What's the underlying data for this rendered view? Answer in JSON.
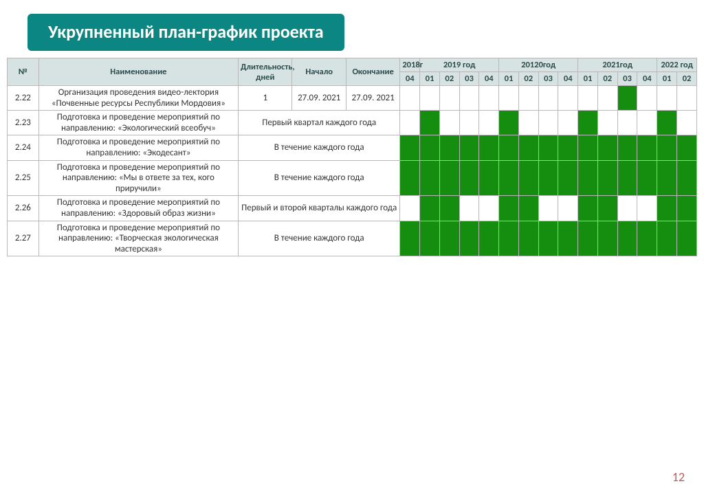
{
  "title": "Укрупненный план-график проекта",
  "page_number": "12",
  "colors": {
    "title_bg": "#0c8682",
    "title_text": "#ffffff",
    "header_bg": "#d7e3e3",
    "border": "#b8b8b8",
    "fill": "#158e0f",
    "page_num": "#c05a5a"
  },
  "header": {
    "num": "№",
    "name": "Наименование",
    "duration": "Длительность, дней",
    "start": "Начало",
    "end": "Окончание",
    "years": [
      "2018г",
      "2019 год",
      "20120год",
      "2021год",
      "2022 год"
    ],
    "year_spans": [
      1,
      4,
      4,
      4,
      2
    ],
    "quarters": [
      "04",
      "01",
      "02",
      "03",
      "04",
      "01",
      "02",
      "03",
      "04",
      "01",
      "02",
      "03",
      "04",
      "01",
      "02"
    ]
  },
  "rows": [
    {
      "num": "2.22",
      "name": "Организация проведения видео-лектория «Почвенные ресурсы Республики Мордовия»",
      "duration": "1",
      "start": "27.09. 2021",
      "end": "27.09. 2021",
      "fills": [
        0,
        0,
        0,
        0,
        0,
        0,
        0,
        0,
        0,
        0,
        0,
        1,
        0,
        0,
        0
      ]
    },
    {
      "num": "2.23",
      "name": "Подготовка и проведение мероприятий по направлению: «Экологический всеобуч»",
      "schedule_text": "Первый квартал каждого года",
      "fills": [
        0,
        1,
        0,
        0,
        0,
        1,
        0,
        0,
        0,
        1,
        0,
        0,
        0,
        1,
        0
      ]
    },
    {
      "num": "2.24",
      "name": "Подготовка и проведение мероприятий по направлению: «Экодесант»",
      "schedule_text": "В течение  каждого года",
      "fills": [
        1,
        1,
        1,
        1,
        1,
        1,
        1,
        1,
        1,
        1,
        1,
        1,
        1,
        1,
        1
      ]
    },
    {
      "num": "2.25",
      "name": "Подготовка и проведение мероприятий по направлению: «Мы в ответе за тех, кого приручили»",
      "schedule_text": "В течение  каждого года",
      "fills": [
        1,
        1,
        1,
        1,
        1,
        1,
        1,
        1,
        1,
        1,
        1,
        1,
        1,
        1,
        1
      ]
    },
    {
      "num": "2.26",
      "name": "Подготовка и проведение мероприятий по направлению: «Здоровый образ жизни»",
      "schedule_text": "Первый и второй кварталы каждого года",
      "fills": [
        0,
        1,
        1,
        0,
        0,
        1,
        1,
        0,
        0,
        1,
        1,
        0,
        0,
        1,
        1
      ]
    },
    {
      "num": "2.27",
      "name": "Подготовка и проведение мероприятий по направлению: «Творческая экологическая мастерская»",
      "schedule_text": "В течение  каждого года",
      "fills": [
        1,
        1,
        1,
        1,
        1,
        1,
        1,
        1,
        1,
        1,
        1,
        1,
        1,
        1,
        1
      ]
    }
  ]
}
